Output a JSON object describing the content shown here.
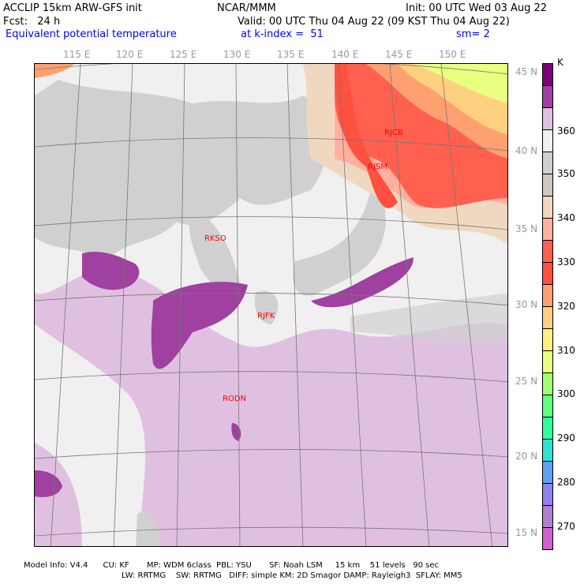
{
  "header": {
    "model": "ACCLIP 15km ARW-GFS init",
    "org": "NCAR/MMM",
    "init": "Init: 00 UTC Wed 03 Aug 22",
    "fcst": "Fcst:   24 h",
    "valid": "Valid: 00 UTC Thu 04 Aug 22 (09 KST Thu 04 Aug 22)",
    "field": "Equivalent potential temperature",
    "level": "at k-index =  51",
    "smooth": "sm= 2"
  },
  "lon_labels": [
    "115 E",
    "120 E",
    "125 E",
    "130 E",
    "135 E",
    "140 E",
    "145 E",
    "150 E"
  ],
  "lat_labels": [
    "45 N",
    "40 N",
    "35 N",
    "30 N",
    "25 N",
    "20 N",
    "15 N"
  ],
  "stations": [
    "RJCB",
    "RJSM",
    "RKSO",
    "RJFK",
    "RODN"
  ],
  "colorbar": {
    "unit": "K",
    "labels": [
      "360",
      "350",
      "340",
      "330",
      "320",
      "310",
      "300",
      "290",
      "280",
      "270"
    ],
    "colors": [
      "#7a0077",
      "#a040a0",
      "#e0c0e0",
      "#f0f0f0",
      "#d0d0d0",
      "#d0c8c0",
      "#f0d8c0",
      "#ffb0a0",
      "#ff6050",
      "#ff5040",
      "#ffa070",
      "#ffd080",
      "#fff080",
      "#e8ff80",
      "#a0ff70",
      "#60ff80",
      "#30ffa0",
      "#30e0d0",
      "#60a0f0",
      "#9080f0",
      "#b080d0",
      "#d060d0"
    ]
  },
  "footer": {
    "line1": "Model Info: V4.4      CU: KF       MP: WDM 6class  PBL: YSU       SF: Noah LSM     15 km    51 levels   90 sec",
    "line2": "LW: RRTMG    SW: RRTMG   DIFF: simple KM: 2D Smagor DAMP: Rayleigh3  SFLAY: MM5"
  }
}
